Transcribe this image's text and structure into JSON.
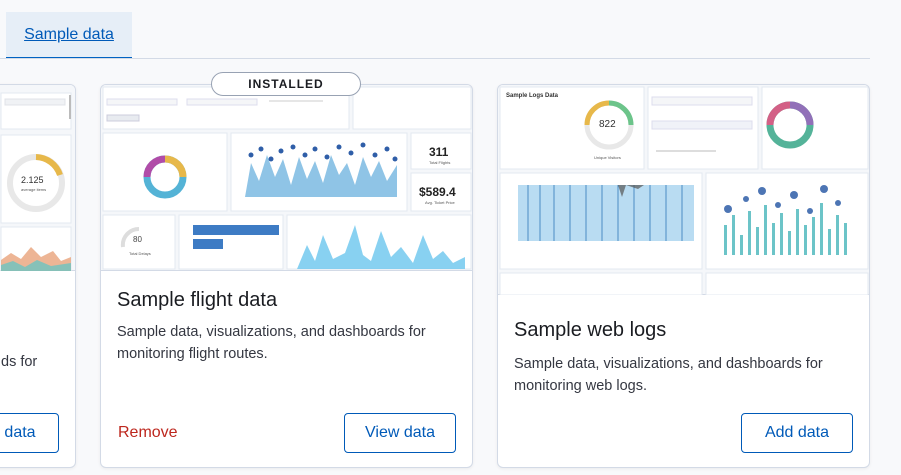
{
  "tabs": {
    "sample_data": "Sample data"
  },
  "cards": [
    {
      "id": "ecommerce",
      "description_tail": "ds for",
      "add_label": "data",
      "thumb": {
        "big_number": "2.125",
        "caption": "average items"
      }
    },
    {
      "id": "flights",
      "badge": "INSTALLED",
      "title": "Sample flight data",
      "description": "Sample data, visualizations, and dashboards for monitoring flight routes.",
      "remove_label": "Remove",
      "view_label": "View data",
      "thumb": {
        "total_flights": "311",
        "total_flights_caption": "Total Flights",
        "avg_price": "$589.4",
        "avg_price_caption": "Avg. Ticket Price",
        "delays": "80",
        "delays_caption": "Total Delays"
      }
    },
    {
      "id": "logs",
      "title": "Sample web logs",
      "description": "Sample data, visualizations, and dashboards for monitoring web logs.",
      "add_label": "Add data",
      "thumb": {
        "panel_title": "Sample Logs Data",
        "visitors": "822",
        "visitors_caption": "Unique Visitors"
      }
    }
  ],
  "colors": {
    "accent": "#005ab8",
    "danger": "#bd271e",
    "border": "#d3dae6"
  }
}
